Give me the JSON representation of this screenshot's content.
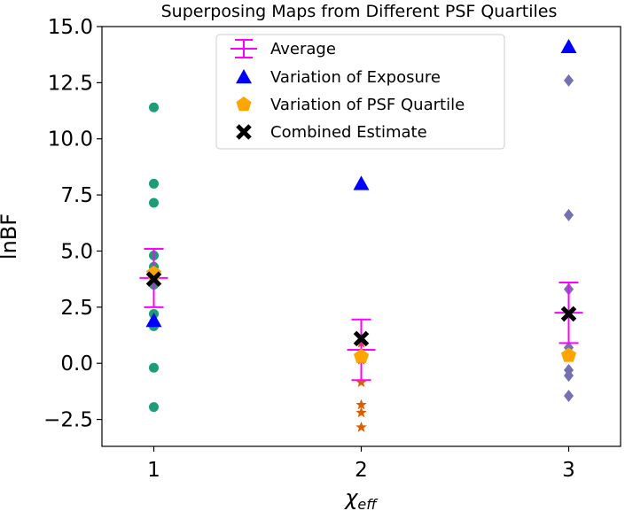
{
  "chart_data": {
    "type": "scatter",
    "title": "Superposing Maps from Different PSF Quartiles",
    "xlabel": "χ",
    "xlabel_sub": "eff",
    "ylabel": "lnBF",
    "xlim": [
      0.75,
      3.25
    ],
    "ylim": [
      -3.7,
      15.0
    ],
    "x_ticks": [
      1,
      2,
      3
    ],
    "x_tick_labels": [
      "1",
      "2",
      "3"
    ],
    "y_ticks": [
      -2.5,
      0.0,
      2.5,
      5.0,
      7.5,
      10.0,
      12.5,
      15.0
    ],
    "y_tick_labels": [
      "−2.5",
      "0.0",
      "2.5",
      "5.0",
      "7.5",
      "10.0",
      "12.5",
      "15.0"
    ],
    "legend": {
      "position": "top-center",
      "entries": [
        "Average",
        "Variation of Exposure",
        "Variation of PSF Quartile",
        "Combined Estimate"
      ]
    },
    "colors": {
      "average": "#ff00ff",
      "exposure": "#0000ff",
      "psf_quartile": "#ffa500",
      "combined": "#000000",
      "individual_1": "#1b9e77",
      "individual_2": "#d95f02",
      "individual_3": "#7570b3"
    },
    "individual_points": [
      {
        "x": 1,
        "marker": "circle",
        "color_key": "individual_1",
        "values": [
          11.4,
          8.0,
          7.15,
          4.8,
          4.3,
          3.5,
          2.2,
          1.65,
          -0.2,
          -1.95
        ]
      },
      {
        "x": 2,
        "marker": "star",
        "color_key": "individual_2",
        "values": [
          0.9,
          0.15,
          -0.85,
          -1.85,
          -2.2,
          -2.85
        ]
      },
      {
        "x": 3,
        "marker": "diamond",
        "color_key": "individual_3",
        "values": [
          12.6,
          6.6,
          3.3,
          0.7,
          -0.3,
          -0.55,
          -1.45
        ]
      }
    ],
    "series": [
      {
        "name": "Average",
        "marker": "errorbar",
        "x": [
          1,
          2,
          3
        ],
        "values": [
          3.8,
          0.6,
          2.25
        ],
        "yerr": [
          1.3,
          1.35,
          1.35
        ]
      },
      {
        "name": "Variation of Exposure",
        "marker": "triangle",
        "x": [
          1,
          2,
          3
        ],
        "values": [
          1.9,
          8.0,
          14.1
        ]
      },
      {
        "name": "Variation of PSF Quartile",
        "marker": "pentagon",
        "x": [
          1,
          2,
          3
        ],
        "values": [
          4.0,
          0.3,
          0.35
        ]
      },
      {
        "name": "Combined Estimate",
        "marker": "x",
        "x": [
          1,
          2,
          3
        ],
        "values": [
          3.75,
          1.1,
          2.2
        ]
      }
    ]
  }
}
